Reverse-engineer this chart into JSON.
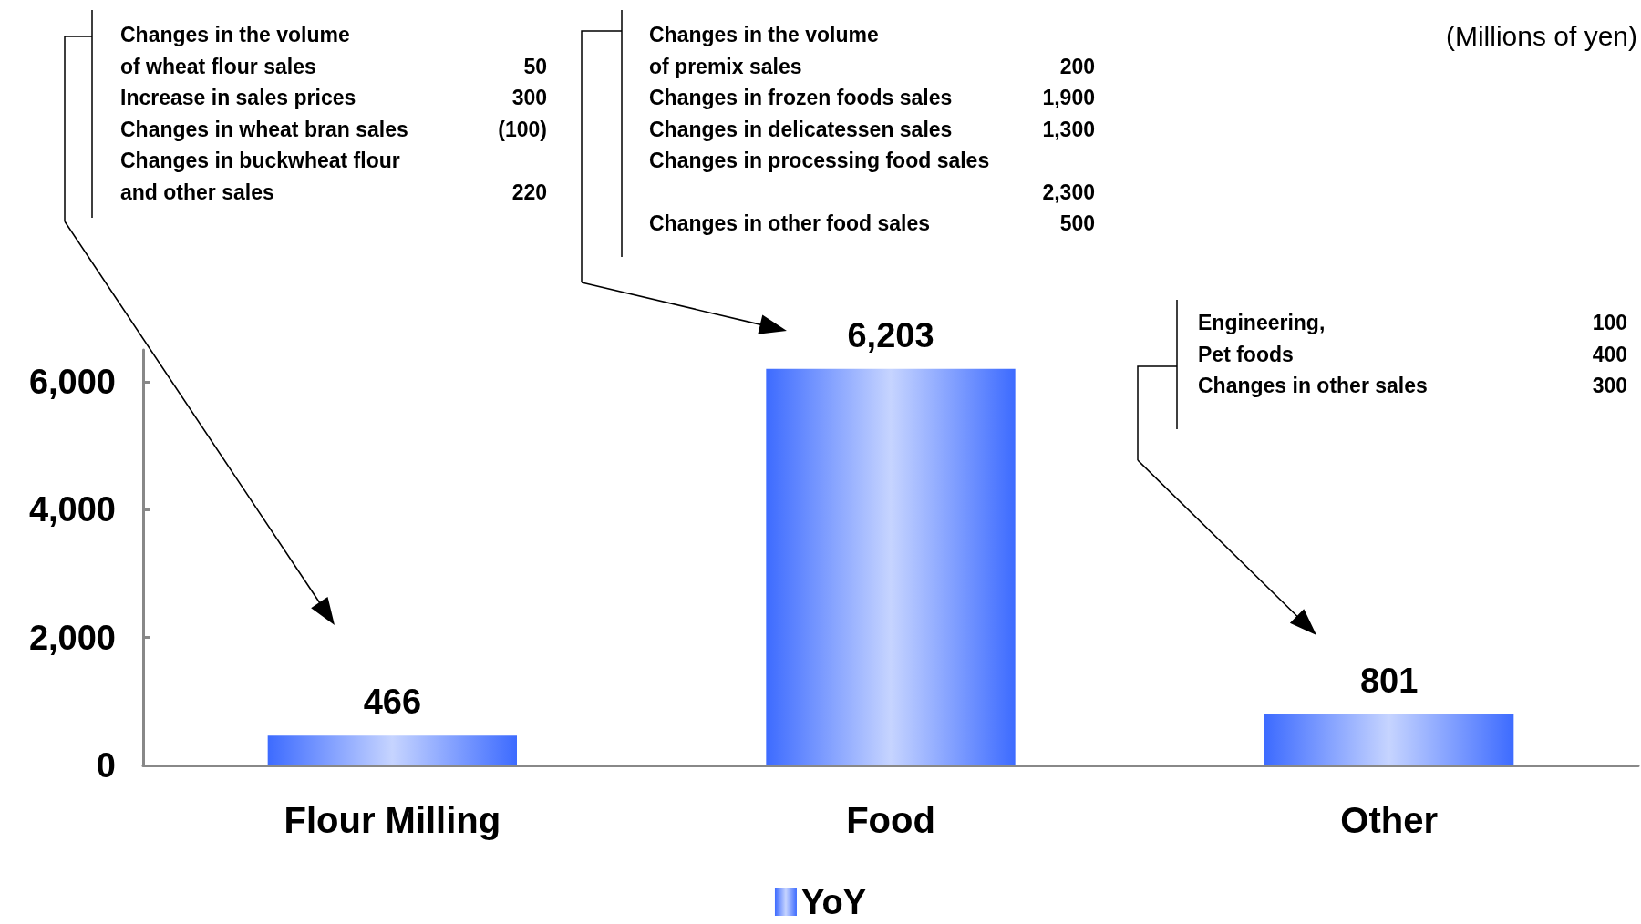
{
  "chart_data": {
    "type": "bar",
    "categories": [
      "Flour Milling",
      "Food",
      "Other"
    ],
    "series": [
      {
        "name": "YoY",
        "color": "#3d6bff",
        "values": [
          466,
          6203,
          801
        ],
        "value_labels": [
          "466",
          "6,203",
          "801"
        ]
      }
    ],
    "ylim": [
      0,
      6500
    ],
    "yticks": [
      0,
      {
        "value": 2000,
        "label": "2,000"
      },
      {
        "value": 4000,
        "label": "4,000"
      },
      {
        "value": 6000,
        "label": "6,000"
      }
    ],
    "grid": false,
    "legend": "bottom",
    "annotations": [
      "(Millions of yen)",
      "Changes in the volume",
      "of wheat flour sales",
      "50",
      "Increase in sales prices",
      "300",
      "Changes in wheat bran sales",
      "(100)",
      "Changes in buckwheat flour",
      "and other sales",
      "220",
      "Changes in the volume",
      "of premix sales",
      "200",
      "Changes in frozen foods sales",
      "1,900",
      "Changes in delicatessen sales",
      "1,300",
      "Changes in processing food sales",
      "2,300",
      "Changes in other food sales",
      "500",
      "Engineering,",
      "100",
      "Pet foods",
      "400",
      "Changes in other sales",
      "300"
    ]
  }
}
